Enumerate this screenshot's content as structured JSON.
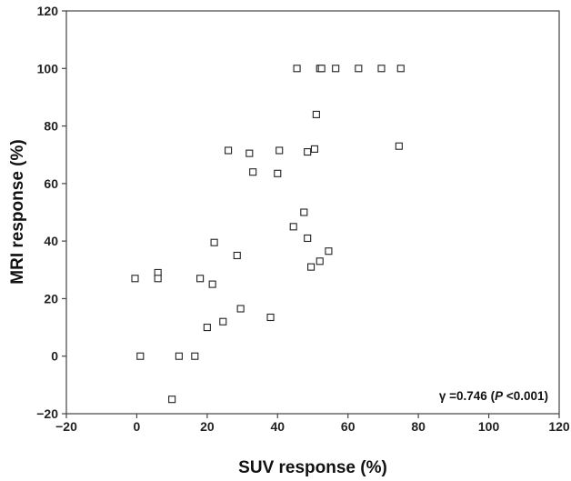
{
  "chart_data": {
    "type": "scatter",
    "xlabel": "SUV response (%)",
    "ylabel": "MRI response (%)",
    "xlim": [
      -20,
      120
    ],
    "ylim": [
      -20,
      120
    ],
    "x_ticks": [
      "−20",
      "0",
      "20",
      "40",
      "60",
      "80",
      "100",
      "120"
    ],
    "y_ticks": [
      "−20",
      "0",
      "20",
      "40",
      "60",
      "80",
      "100",
      "120"
    ],
    "grid": false,
    "marker": "open-square",
    "annotation": {
      "prefix": "γ =0.746 (",
      "italic": "P",
      "suffix": " <0.001)"
    },
    "points": [
      {
        "x": -0.5,
        "y": 27
      },
      {
        "x": 1,
        "y": 0
      },
      {
        "x": 6,
        "y": 29
      },
      {
        "x": 6,
        "y": 27
      },
      {
        "x": 10,
        "y": -15
      },
      {
        "x": 12,
        "y": 0
      },
      {
        "x": 16.5,
        "y": 0
      },
      {
        "x": 18,
        "y": 27
      },
      {
        "x": 20,
        "y": 10
      },
      {
        "x": 21.5,
        "y": 25
      },
      {
        "x": 22,
        "y": 39.5
      },
      {
        "x": 24.5,
        "y": 12
      },
      {
        "x": 28.5,
        "y": 35
      },
      {
        "x": 29.5,
        "y": 16.5
      },
      {
        "x": 26,
        "y": 71.5
      },
      {
        "x": 32,
        "y": 70.5
      },
      {
        "x": 33,
        "y": 64
      },
      {
        "x": 38,
        "y": 13.5
      },
      {
        "x": 40,
        "y": 63.5
      },
      {
        "x": 40.5,
        "y": 71.5
      },
      {
        "x": 44.5,
        "y": 45
      },
      {
        "x": 45.5,
        "y": 100
      },
      {
        "x": 47.5,
        "y": 50
      },
      {
        "x": 48.5,
        "y": 41
      },
      {
        "x": 48.5,
        "y": 71
      },
      {
        "x": 49.5,
        "y": 31
      },
      {
        "x": 50.5,
        "y": 72
      },
      {
        "x": 51,
        "y": 84
      },
      {
        "x": 52,
        "y": 33
      },
      {
        "x": 52,
        "y": 100
      },
      {
        "x": 52.5,
        "y": 100
      },
      {
        "x": 54.5,
        "y": 36.5
      },
      {
        "x": 56.5,
        "y": 100
      },
      {
        "x": 63,
        "y": 100
      },
      {
        "x": 69.5,
        "y": 100
      },
      {
        "x": 74.5,
        "y": 73
      },
      {
        "x": 75,
        "y": 100
      }
    ]
  }
}
